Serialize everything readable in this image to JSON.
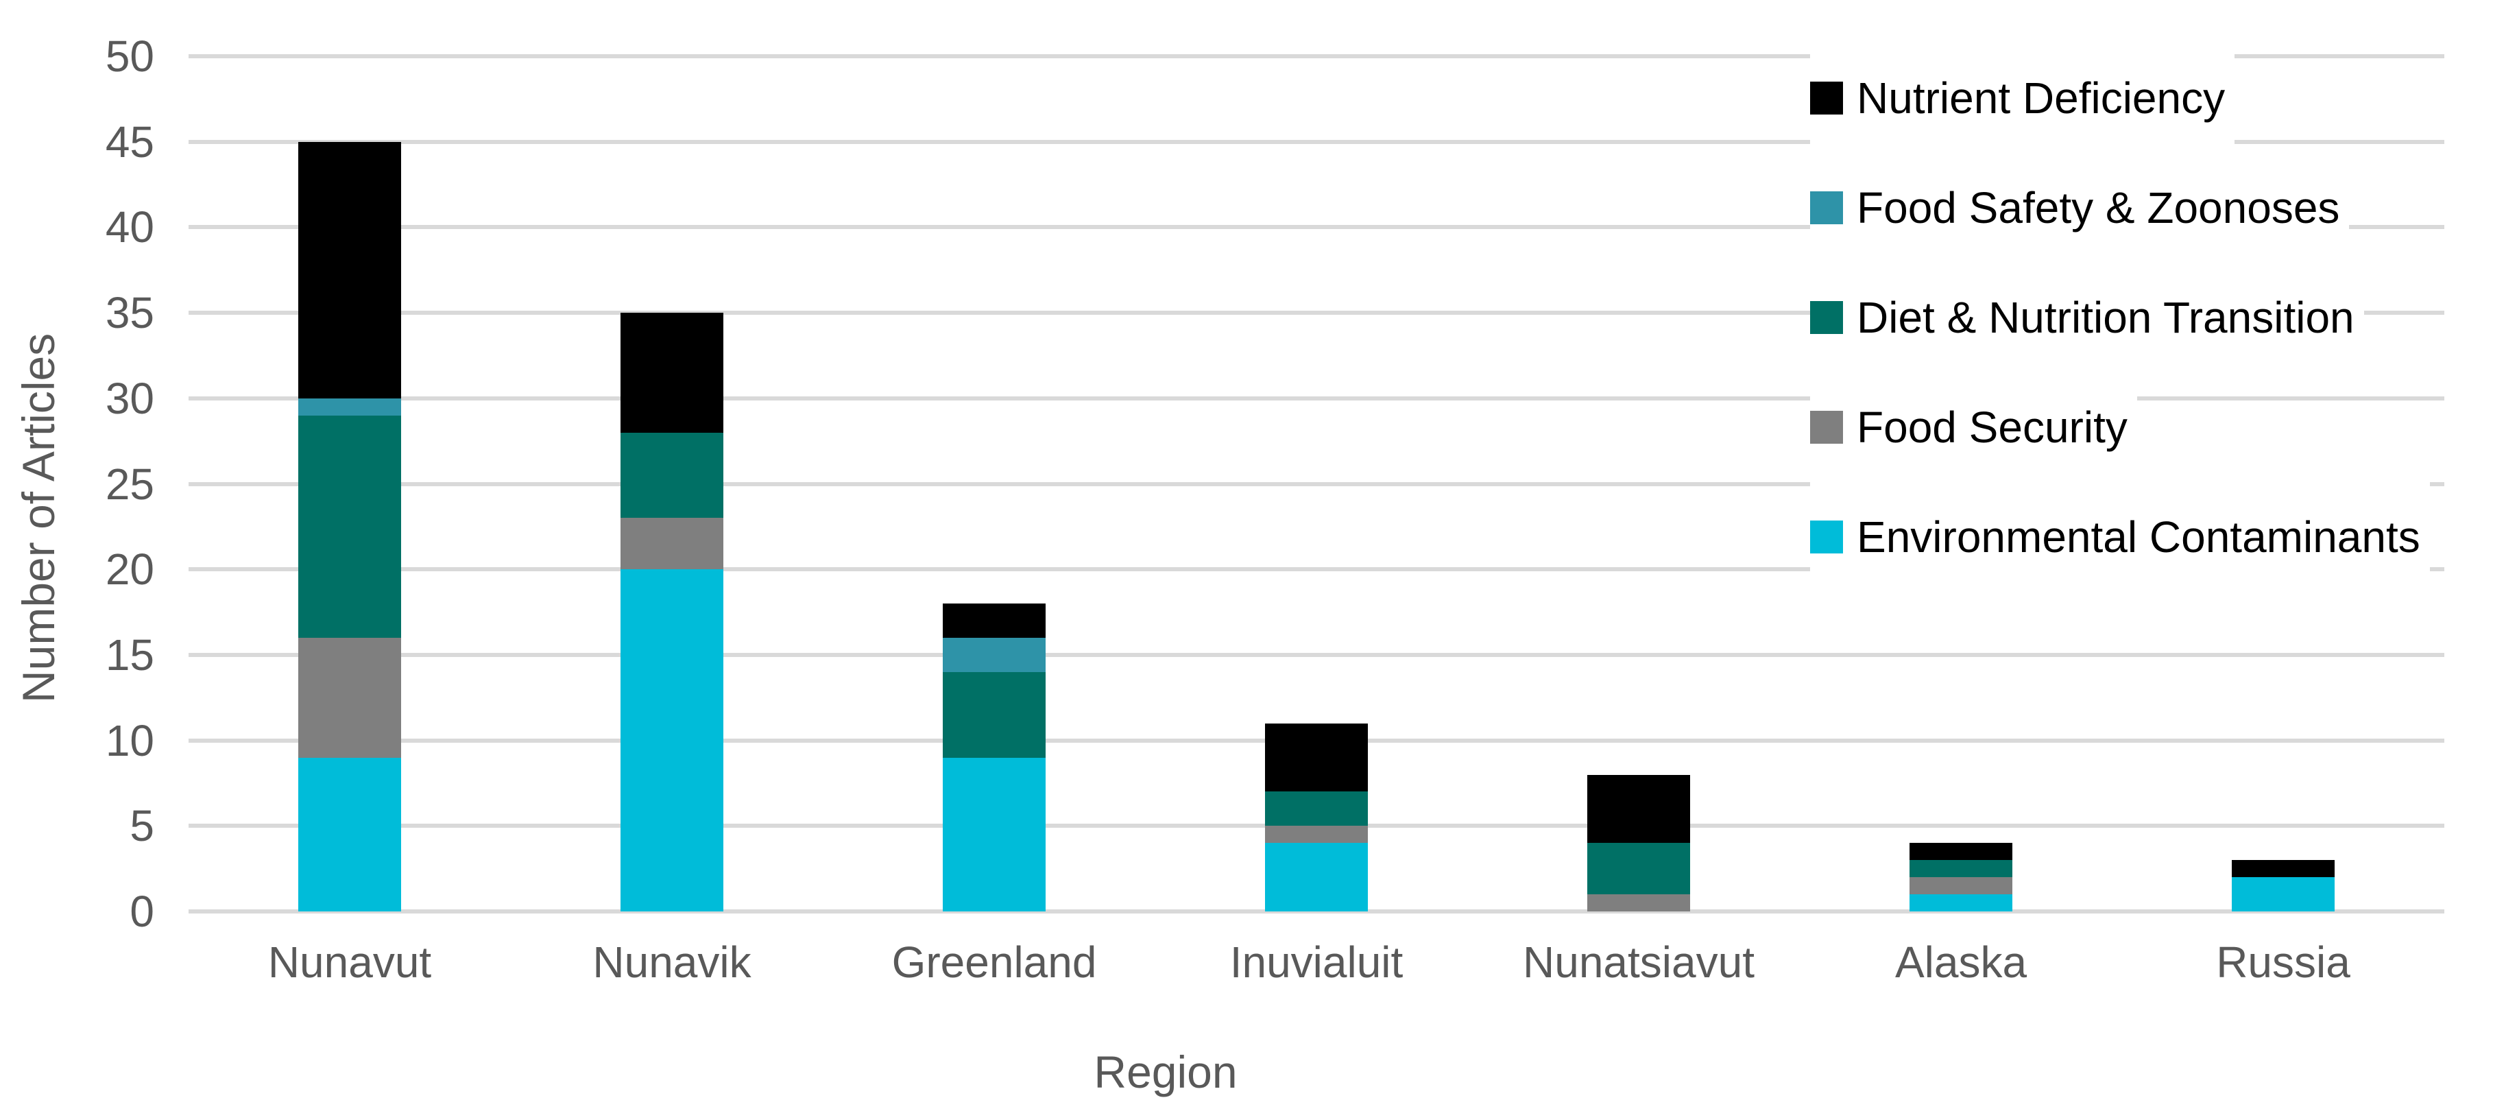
{
  "chart_data": {
    "type": "bar",
    "stacked": true,
    "title": "",
    "xlabel": "Region",
    "ylabel": "Number of Articles",
    "ylim": [
      0,
      50
    ],
    "ytick_step": 5,
    "yticks": [
      0,
      5,
      10,
      15,
      20,
      25,
      30,
      35,
      40,
      45,
      50
    ],
    "grid": "horizontal",
    "legend_position": "top-right-overlay",
    "categories": [
      "Nunavut",
      "Nunavik",
      "Greenland",
      "Inuvialuit",
      "Nunatsiavut",
      "Alaska",
      "Russia"
    ],
    "series": [
      {
        "name": "Environmental Contaminants",
        "color": "#00BCD9",
        "values": [
          9,
          20,
          9,
          4,
          0,
          1,
          2
        ]
      },
      {
        "name": "Food Security",
        "color": "#7F7F7F",
        "values": [
          7,
          3,
          0,
          1,
          1,
          1,
          0
        ]
      },
      {
        "name": "Diet & Nutrition Transition",
        "color": "#007065",
        "values": [
          13,
          5,
          5,
          2,
          3,
          1,
          0
        ]
      },
      {
        "name": "Food Safety & Zoonoses",
        "color": "#2E93A8",
        "values": [
          1,
          0,
          2,
          0,
          0,
          0,
          0
        ]
      },
      {
        "name": "Nutrient Deficiency",
        "color": "#000000",
        "values": [
          15,
          7,
          2,
          4,
          4,
          1,
          1
        ]
      }
    ],
    "legend_order": [
      "Nutrient Deficiency",
      "Food Safety & Zoonoses",
      "Diet & Nutrition Transition",
      "Food Security",
      "Environmental Contaminants"
    ],
    "totals": [
      45,
      35,
      18,
      11,
      8,
      4,
      3
    ]
  },
  "colors": {
    "grid": "#D9D9D9",
    "axis_text": "#595959",
    "legend_text": "#000000",
    "background": "#FFFFFF"
  }
}
